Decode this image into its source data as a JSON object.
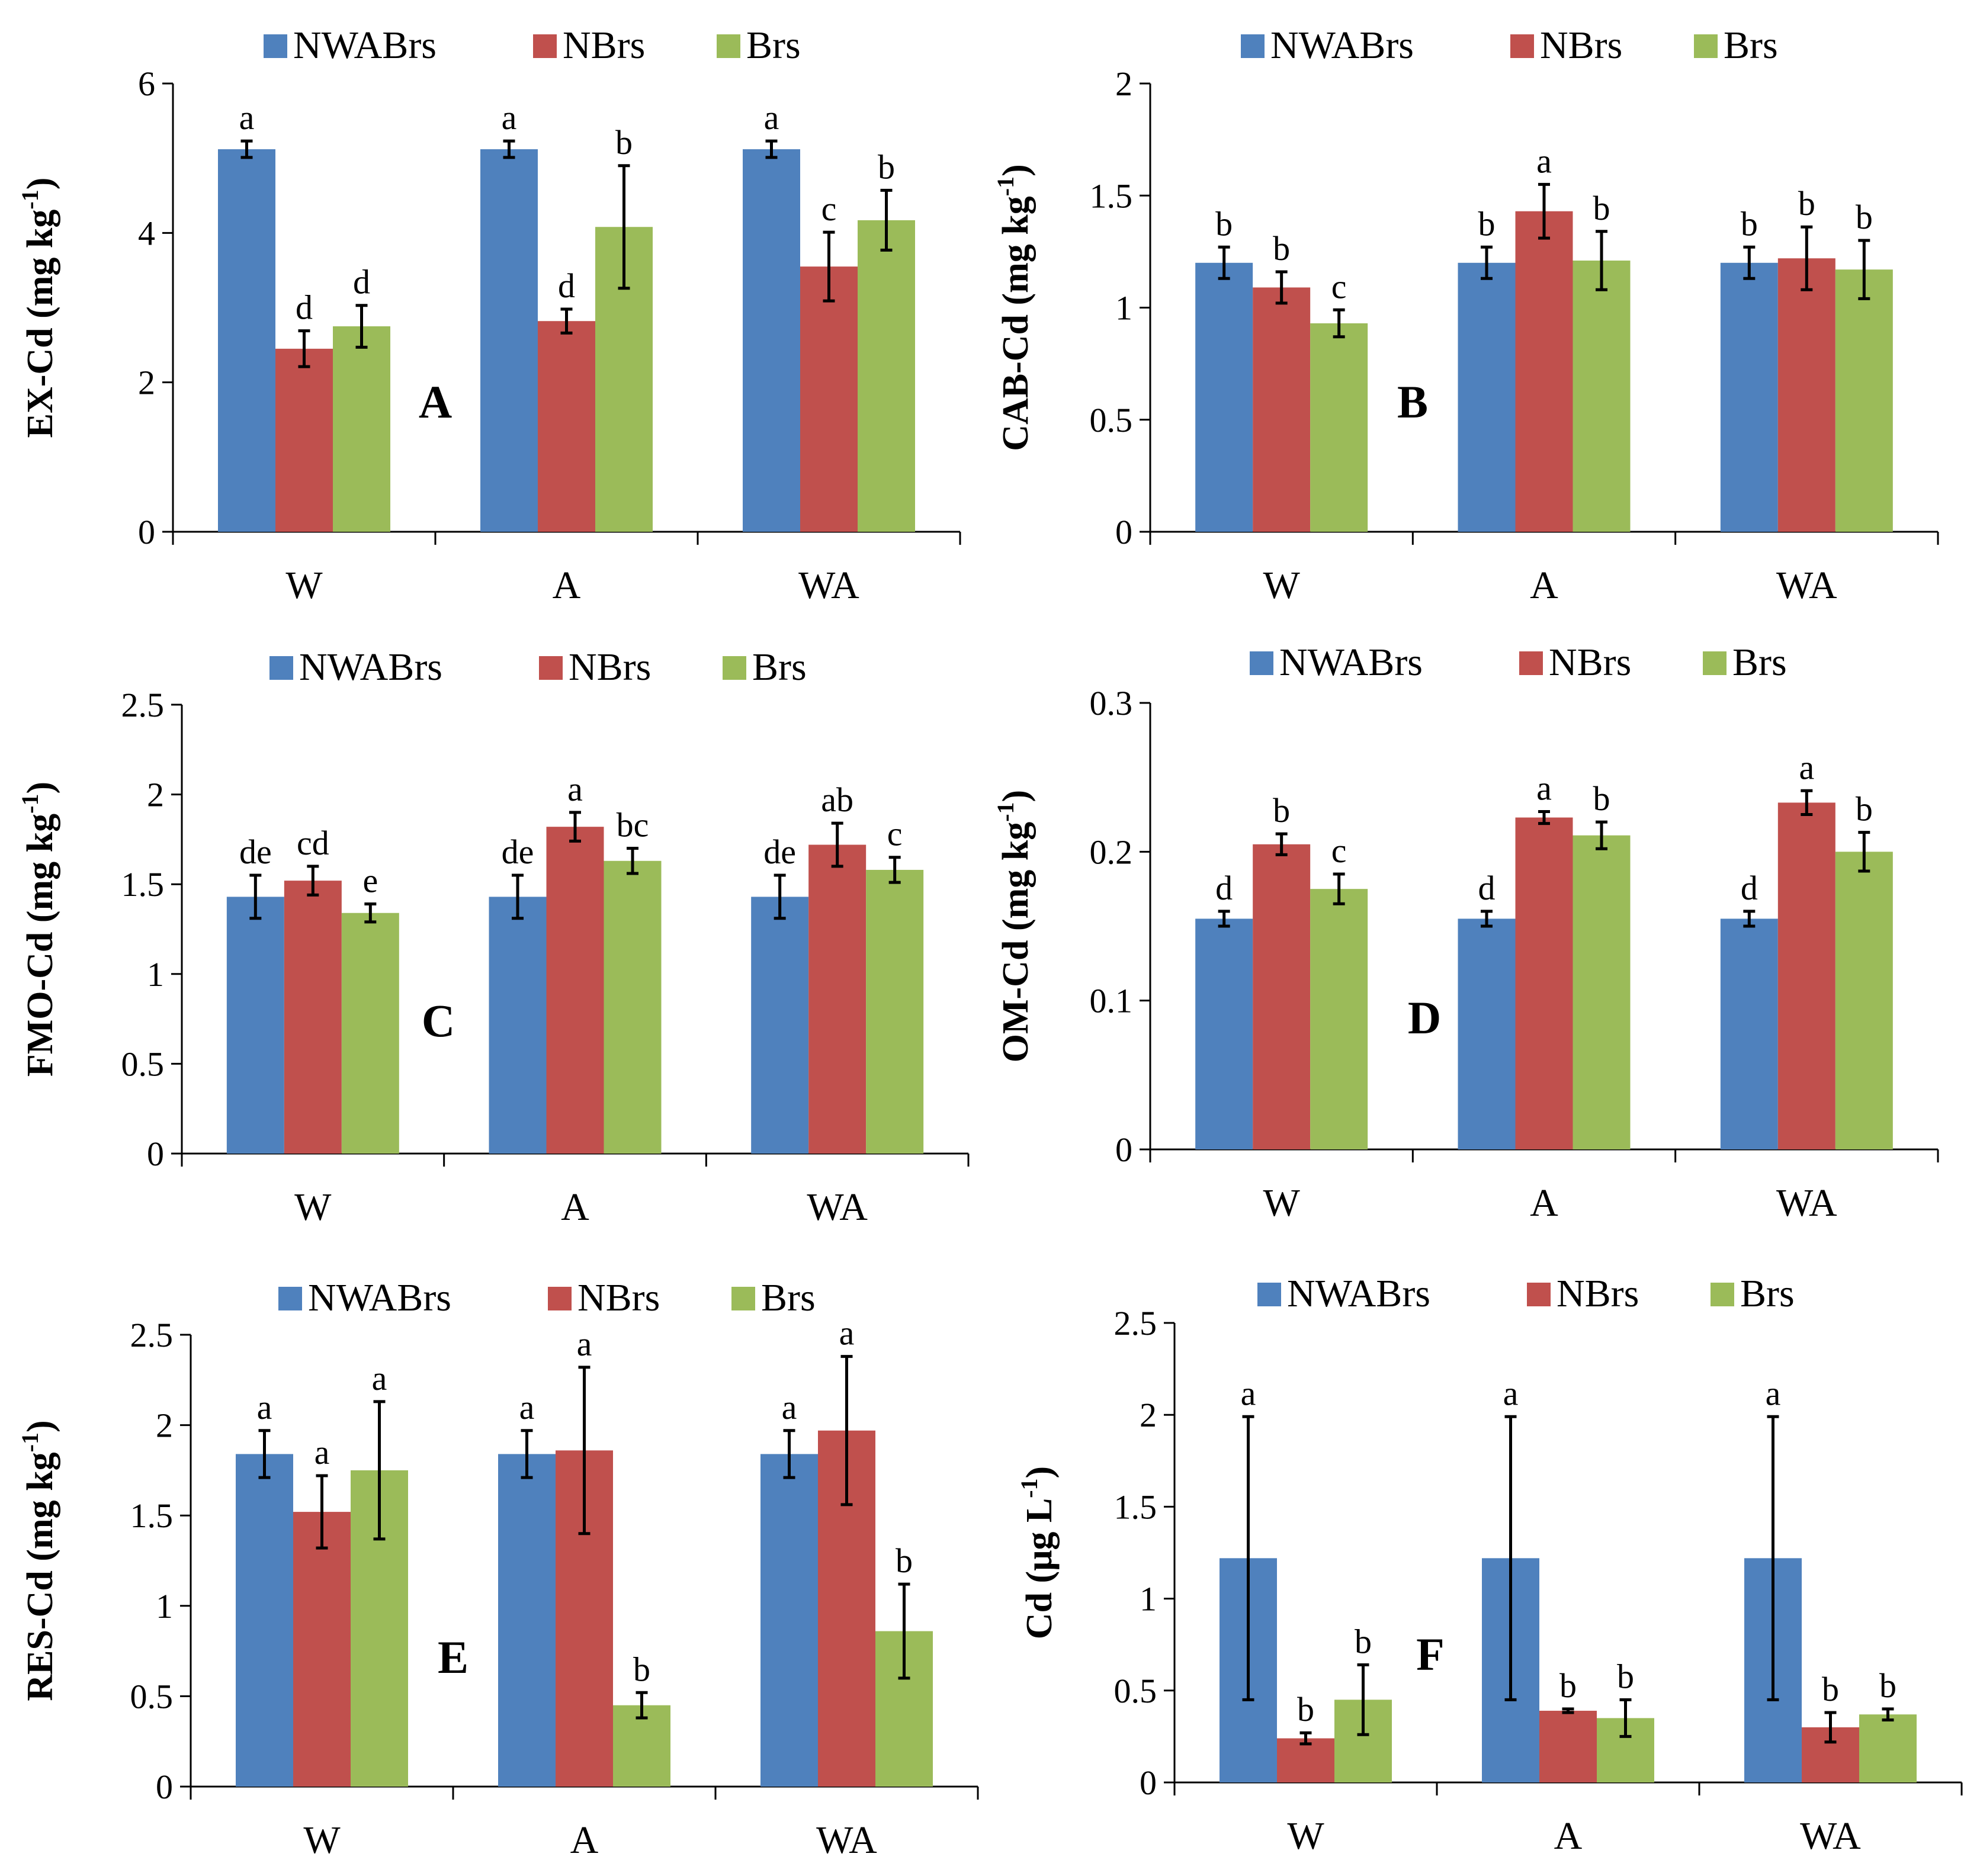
{
  "colors": {
    "NWABrs": "#4F81BD",
    "NBrs": "#C0504D",
    "Brs": "#9BBB59"
  },
  "chart_data": [
    {
      "type": "bar",
      "panel_letter": "A",
      "ylabel": "EX-Cd (mg kg",
      "ylabel_sup": "-1",
      "ylabel_end": ")",
      "ylim": [
        0,
        6
      ],
      "yticks": [
        0,
        2,
        4,
        6
      ],
      "ytick_labels": [
        "0",
        "2",
        "4",
        "6"
      ],
      "categories": [
        "W",
        "A",
        "WA"
      ],
      "legend_position": "top",
      "series": [
        {
          "name": "NWABrs",
          "values": [
            5.12,
            5.12,
            5.12
          ],
          "errors": [
            0.11,
            0.11,
            0.11
          ],
          "letters": [
            "a",
            "a",
            "a"
          ]
        },
        {
          "name": "NBrs",
          "values": [
            2.45,
            2.82,
            3.55
          ],
          "errors": [
            0.24,
            0.16,
            0.46
          ],
          "letters": [
            "d",
            "d",
            "c"
          ]
        },
        {
          "name": "Brs",
          "values": [
            2.75,
            4.08,
            4.17
          ],
          "errors": [
            0.28,
            0.82,
            0.4
          ],
          "letters": [
            "d",
            "b",
            "b"
          ]
        }
      ]
    },
    {
      "type": "bar",
      "panel_letter": "B",
      "ylabel": "CAB-Cd (mg kg",
      "ylabel_sup": "-1",
      "ylabel_end": ")",
      "ylim": [
        0,
        2
      ],
      "yticks": [
        0,
        0.5,
        1,
        1.5,
        2
      ],
      "ytick_labels": [
        "0",
        "0.5",
        "1",
        "1.5",
        "2"
      ],
      "categories": [
        "W",
        "A",
        "WA"
      ],
      "legend_position": "top",
      "series": [
        {
          "name": "NWABrs",
          "values": [
            1.2,
            1.2,
            1.2
          ],
          "errors": [
            0.07,
            0.07,
            0.07
          ],
          "letters": [
            "b",
            "b",
            "b"
          ]
        },
        {
          "name": "NBrs",
          "values": [
            1.09,
            1.43,
            1.22
          ],
          "errors": [
            0.07,
            0.12,
            0.14
          ],
          "letters": [
            "b",
            "a",
            "b"
          ]
        },
        {
          "name": "Brs",
          "values": [
            0.93,
            1.21,
            1.17
          ],
          "errors": [
            0.06,
            0.13,
            0.13
          ],
          "letters": [
            "c",
            "b",
            "b"
          ]
        }
      ]
    },
    {
      "type": "bar",
      "panel_letter": "C",
      "ylabel": "FMO-Cd (mg kg",
      "ylabel_sup": "-1",
      "ylabel_end": ")",
      "ylim": [
        0,
        2.5
      ],
      "yticks": [
        0,
        0.5,
        1,
        1.5,
        2,
        2.5
      ],
      "ytick_labels": [
        "0",
        "0.5",
        "1",
        "1.5",
        "2",
        "2.5"
      ],
      "categories": [
        "W",
        "A",
        "WA"
      ],
      "legend_position": "top",
      "series": [
        {
          "name": "NWABrs",
          "values": [
            1.43,
            1.43,
            1.43
          ],
          "errors": [
            0.12,
            0.12,
            0.12
          ],
          "letters": [
            "de",
            "de",
            "de"
          ]
        },
        {
          "name": "NBrs",
          "values": [
            1.52,
            1.82,
            1.72
          ],
          "errors": [
            0.08,
            0.08,
            0.12
          ],
          "letters": [
            "cd",
            "a",
            "ab"
          ]
        },
        {
          "name": "Brs",
          "values": [
            1.34,
            1.63,
            1.58
          ],
          "errors": [
            0.05,
            0.07,
            0.07
          ],
          "letters": [
            "e",
            "bc",
            "c"
          ]
        }
      ]
    },
    {
      "type": "bar",
      "panel_letter": "D",
      "ylabel": "OM-Cd (mg kg",
      "ylabel_sup": "-1",
      "ylabel_end": ")",
      "ylim": [
        0,
        0.3
      ],
      "yticks": [
        0,
        0.1,
        0.2,
        0.3
      ],
      "ytick_labels": [
        "0",
        "0.1",
        "0.2",
        "0.3"
      ],
      "categories": [
        "W",
        "A",
        "WA"
      ],
      "legend_position": "top",
      "series": [
        {
          "name": "NWABrs",
          "values": [
            0.155,
            0.155,
            0.155
          ],
          "errors": [
            0.005,
            0.005,
            0.005
          ],
          "letters": [
            "d",
            "d",
            "d"
          ]
        },
        {
          "name": "NBrs",
          "values": [
            0.205,
            0.223,
            0.233
          ],
          "errors": [
            0.007,
            0.004,
            0.008
          ],
          "letters": [
            "b",
            "a",
            "a"
          ]
        },
        {
          "name": "Brs",
          "values": [
            0.175,
            0.211,
            0.2
          ],
          "errors": [
            0.01,
            0.009,
            0.013
          ],
          "letters": [
            "c",
            "b",
            "b"
          ]
        }
      ]
    },
    {
      "type": "bar",
      "panel_letter": "E",
      "ylabel": "RES-Cd (mg kg",
      "ylabel_sup": "-1",
      "ylabel_end": ")",
      "ylim": [
        0,
        2.5
      ],
      "yticks": [
        0,
        0.5,
        1,
        1.5,
        2,
        2.5
      ],
      "ytick_labels": [
        "0",
        "0.5",
        "1",
        "1.5",
        "2",
        "2.5"
      ],
      "categories": [
        "W",
        "A",
        "WA"
      ],
      "legend_position": "top",
      "series": [
        {
          "name": "NWABrs",
          "values": [
            1.84,
            1.84,
            1.84
          ],
          "errors": [
            0.13,
            0.13,
            0.13
          ],
          "letters": [
            "a",
            "a",
            "a"
          ]
        },
        {
          "name": "NBrs",
          "values": [
            1.52,
            1.86,
            1.97
          ],
          "errors": [
            0.2,
            0.46,
            0.41
          ],
          "letters": [
            "a",
            "a",
            "a"
          ]
        },
        {
          "name": "Brs",
          "values": [
            1.75,
            0.45,
            0.86
          ],
          "errors": [
            0.38,
            0.07,
            0.26
          ],
          "letters": [
            "a",
            "b",
            "b"
          ]
        }
      ]
    },
    {
      "type": "bar",
      "panel_letter": "F",
      "ylabel": "Cd (μg L",
      "ylabel_sup": "-1",
      "ylabel_end": ")",
      "ylim": [
        0,
        2.5
      ],
      "yticks": [
        0,
        0.5,
        1,
        1.5,
        2,
        2.5
      ],
      "ytick_labels": [
        "0",
        "0.5",
        "1",
        "1.5",
        "2",
        "2.5"
      ],
      "categories": [
        "W",
        "A",
        "WA"
      ],
      "legend_position": "top",
      "series": [
        {
          "name": "NWABrs",
          "values": [
            1.22,
            1.22,
            1.22
          ],
          "errors": [
            0.77,
            0.77,
            0.77
          ],
          "letters": [
            "a",
            "a",
            "a"
          ]
        },
        {
          "name": "NBrs",
          "values": [
            0.24,
            0.39,
            0.3
          ],
          "errors": [
            0.03,
            0.01,
            0.08
          ],
          "letters": [
            "b",
            "b",
            "b"
          ]
        },
        {
          "name": "Brs",
          "values": [
            0.45,
            0.35,
            0.37
          ],
          "errors": [
            0.19,
            0.1,
            0.03
          ],
          "letters": [
            "b",
            "b",
            "b"
          ]
        }
      ]
    }
  ]
}
